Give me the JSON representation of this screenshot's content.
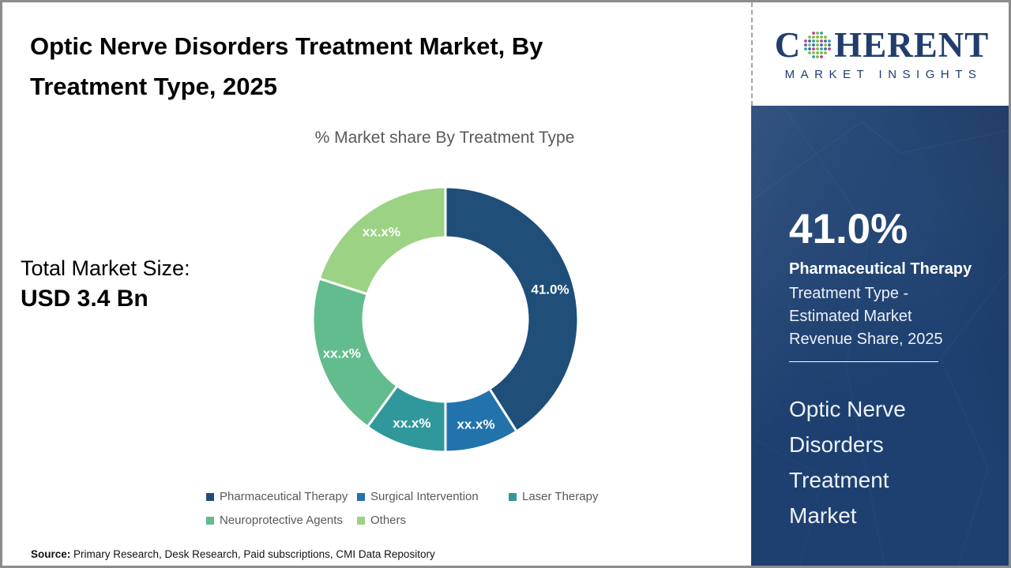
{
  "page": {
    "title_lines": [
      "Optic Nerve Disorders Treatment Market, By",
      "Treatment Type, 2025"
    ],
    "chart_subtitle": "% Market share By Treatment Type",
    "total_market_label": "Total Market Size:",
    "total_market_value": "USD 3.4 Bn",
    "source_label": "Source:",
    "source_text": "Primary Research, Desk Research, Paid subscriptions, CMI Data Repository"
  },
  "brand": {
    "name_prefix": "C",
    "name_suffix": "HERENT",
    "tagline": "MARKET INSIGHTS",
    "logo_color": "#203d6d",
    "globe_dot_colors": [
      "#2ba39e",
      "#7bb84e",
      "#c23a8c",
      "#3a67a9"
    ]
  },
  "side_panel": {
    "background_color": "#1d4070",
    "stat_value": "41.0%",
    "stat_title": "Pharmaceutical Therapy",
    "stat_desc_lines": [
      "Treatment Type -",
      "Estimated Market",
      "Revenue Share, 2025"
    ],
    "market_name_lines": [
      "Optic Nerve",
      "Disorders",
      "Treatment",
      "Market"
    ]
  },
  "chart_data": {
    "type": "pie",
    "donut": true,
    "title": "% Market share By Treatment Type",
    "start_angle_deg": 0,
    "direction": "clockwise",
    "legend_position": "bottom",
    "inner_radius_ratio": 0.62,
    "series": [
      {
        "name": "Pharmaceutical Therapy",
        "value": 41.0,
        "data_label": "41.0%",
        "color": "#1f4e79"
      },
      {
        "name": "Surgical Intervention",
        "value": 9.0,
        "data_label": "xx.x%",
        "color": "#2273ac"
      },
      {
        "name": "Laser Therapy",
        "value": 10.0,
        "data_label": "xx.x%",
        "color": "#30989b"
      },
      {
        "name": "Neuroprotective Agents",
        "value": 20.0,
        "data_label": "xx.x%",
        "color": "#63bc8d"
      },
      {
        "name": "Others",
        "value": 20.0,
        "data_label": "xx.x%",
        "color": "#9cd283"
      }
    ]
  }
}
